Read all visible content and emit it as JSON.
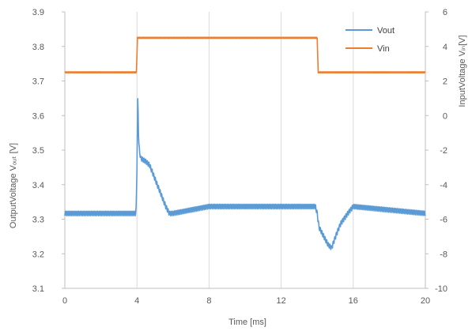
{
  "chart_data": {
    "type": "line",
    "title": "",
    "xlabel": "Time [ms]",
    "ylabel_left": "OutputVoltage  Vₒᵤₜ [V]",
    "ylabel_right": "InputVoltage  Vᵢₙ[V]",
    "xlim": [
      0,
      20
    ],
    "ylim_left": [
      3.1,
      3.9
    ],
    "ylim_right": [
      -10,
      6
    ],
    "x_ticks": [
      "0",
      "4",
      "8",
      "12",
      "16",
      "20"
    ],
    "y_left_ticks": [
      "3.1",
      "3.2",
      "3.3",
      "3.4",
      "3.5",
      "3.6",
      "3.7",
      "3.8",
      "3.9"
    ],
    "y_right_ticks": [
      "-10",
      "-8",
      "-6",
      "-4",
      "-2",
      "0",
      "2",
      "4",
      "6"
    ],
    "grid": "vertical",
    "legend_position": "top-right",
    "series": [
      {
        "name": "Vout",
        "axis": "left",
        "color": "#5B9BD5",
        "x": [
          0,
          2,
          3.95,
          4.0,
          4.05,
          4.1,
          4.2,
          4.5,
          4.7,
          5.0,
          5.3,
          5.6,
          5.8,
          6.0,
          8,
          10,
          12,
          13.9,
          14.0,
          14.1,
          14.3,
          14.6,
          14.8,
          15.0,
          15.3,
          15.7,
          16.0,
          18,
          20
        ],
        "y": [
          3.32,
          3.32,
          3.32,
          3.45,
          3.67,
          3.52,
          3.48,
          3.47,
          3.46,
          3.42,
          3.38,
          3.34,
          3.32,
          3.32,
          3.34,
          3.34,
          3.34,
          3.34,
          3.32,
          3.28,
          3.26,
          3.23,
          3.22,
          3.25,
          3.29,
          3.32,
          3.34,
          3.33,
          3.32
        ],
        "ripple": 0.02
      },
      {
        "name": "Vin",
        "axis": "right",
        "color": "#ED7D31",
        "x": [
          0,
          3.98,
          4.02,
          14.0,
          14.05,
          20
        ],
        "y": [
          2.5,
          2.5,
          4.5,
          4.5,
          2.5,
          2.5
        ]
      }
    ]
  }
}
